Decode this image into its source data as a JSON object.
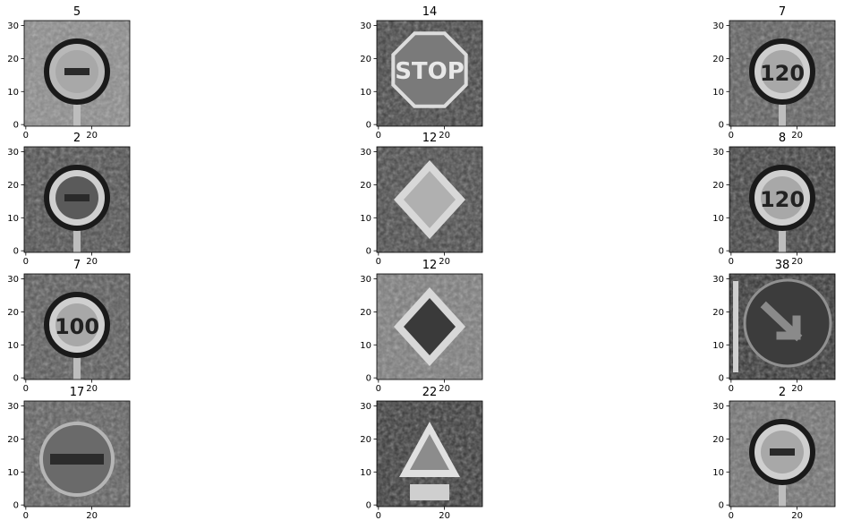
{
  "chart_data": {
    "type": "image-grid",
    "rows": 4,
    "cols": 3,
    "axes": {
      "xlim": [
        -0.5,
        31.5
      ],
      "ylim": [
        31.5,
        -0.5
      ],
      "xticks": [
        0,
        20
      ],
      "yticks": [
        0,
        10,
        20,
        30
      ],
      "xtick_labels": [
        "0",
        "20"
      ],
      "ytick_labels": [
        "0",
        "10",
        "20",
        "30"
      ]
    },
    "colormap": "gray",
    "panels": [
      {
        "title": "5",
        "sign": "speed-limit-round-faded"
      },
      {
        "title": "14",
        "sign": "stop-octagon",
        "sign_text": "STOP"
      },
      {
        "title": "7",
        "sign": "speed-limit-round",
        "sign_text": "120"
      },
      {
        "title": "2",
        "sign": "speed-limit-round-dark"
      },
      {
        "title": "12",
        "sign": "priority-road-diamond"
      },
      {
        "title": "8",
        "sign": "speed-limit-round",
        "sign_text": "120"
      },
      {
        "title": "7",
        "sign": "speed-limit-round",
        "sign_text": "100"
      },
      {
        "title": "12",
        "sign": "priority-road-diamond"
      },
      {
        "title": "38",
        "sign": "keep-right-arrow"
      },
      {
        "title": "17",
        "sign": "no-entry-round"
      },
      {
        "title": "22",
        "sign": "warning-triangle"
      },
      {
        "title": "2",
        "sign": "speed-limit-round"
      }
    ]
  }
}
